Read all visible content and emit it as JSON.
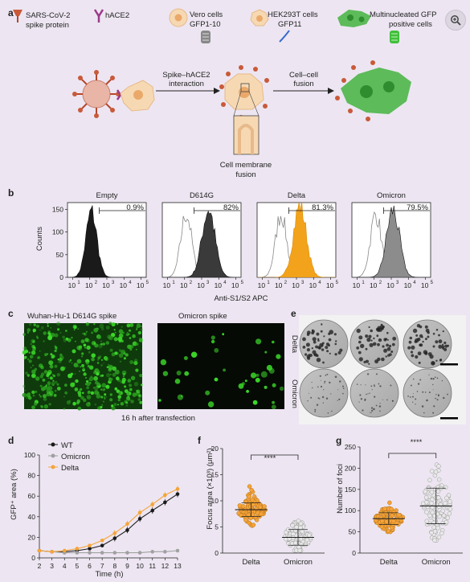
{
  "figure": {
    "a": {
      "letter": "a",
      "legend": [
        "SARS-CoV-2",
        "spike protein",
        "hACE2",
        "Vero cells",
        "GFP1-10",
        "HEK293T cells",
        "GFP11",
        "Multinucleated GFP",
        "positive cells"
      ],
      "arrow1": [
        "Spike–hACE2",
        "interaction"
      ],
      "arrow2": [
        "Cell–cell",
        "fusion"
      ],
      "fusion_label": [
        "Cell membrane",
        "fusion"
      ]
    },
    "b": {
      "letter": "b",
      "ylabel": "Counts",
      "xlabel": "Anti-S1/S2 APC",
      "yticks": [
        "0",
        "50",
        "100",
        "150"
      ],
      "xticks": [
        "10",
        "10",
        "10",
        "10",
        "10"
      ],
      "xtick_exps": [
        "1",
        "2",
        "3",
        "4",
        "5"
      ],
      "panels": [
        {
          "title": "Empty",
          "pct": "0.9%",
          "color": "#1a1a1a"
        },
        {
          "title": "D614G",
          "pct": "82%",
          "color": "#3a3a3a"
        },
        {
          "title": "Delta",
          "pct": "81.3%",
          "color": "#f2a31b"
        },
        {
          "title": "Omicron",
          "pct": "79.5%",
          "color": "#8c8c8c"
        }
      ]
    },
    "c": {
      "letter": "c",
      "left_title": "Wuhan-Hu-1 D614G spike",
      "right_title": "Omicron spike",
      "caption": "16 h after transfection"
    },
    "d": {
      "letter": "d",
      "ylabel": "GFP⁺ area (%)",
      "xlabel": "Time (h)",
      "legend": [
        "WT",
        "Omicron",
        "Delta"
      ]
    },
    "e": {
      "letter": "e",
      "rows": [
        "Delta",
        "Omicron"
      ]
    },
    "f": {
      "letter": "f",
      "ylabel": "Focus area (×10³) (μm²)",
      "sig": "****"
    },
    "g": {
      "letter": "g",
      "ylabel": "Number of foci",
      "sig": "****"
    }
  },
  "colors": {
    "wt": "#1a1a1a",
    "omicron": "#a0a0a0",
    "delta": "#f5a43a",
    "gfp": "#3ddc2a",
    "spike": "#b5472c"
  },
  "icons": {
    "zoom": "zoom-in-icon"
  },
  "chart_data": [
    {
      "type": "line",
      "panel": "d",
      "x": [
        2,
        3,
        4,
        5,
        6,
        7,
        8,
        9,
        10,
        11,
        12,
        13
      ],
      "series": [
        {
          "name": "WT",
          "values": [
            7,
            6,
            6,
            7,
            9,
            12,
            19,
            27,
            38,
            46,
            54,
            62
          ]
        },
        {
          "name": "Omicron",
          "values": [
            7,
            6,
            5,
            5,
            5,
            5,
            5,
            5,
            5,
            6,
            6,
            7
          ]
        },
        {
          "name": "Delta",
          "values": [
            7,
            6,
            7,
            9,
            12,
            17,
            24,
            33,
            44,
            52,
            61,
            67
          ]
        }
      ],
      "xlabel": "Time (h)",
      "ylabel": "GFP⁺ area (%)",
      "xlim": [
        2,
        13
      ],
      "ylim": [
        0,
        100
      ],
      "xticks": [
        2,
        3,
        4,
        5,
        6,
        7,
        8,
        9,
        10,
        11,
        12,
        13
      ],
      "yticks": [
        0,
        20,
        40,
        60,
        80,
        100
      ],
      "legend_position": "top-left"
    },
    {
      "type": "scatter",
      "panel": "f",
      "categories": [
        "Delta",
        "Omicron"
      ],
      "series": [
        {
          "name": "Delta",
          "mean": 8.3,
          "sd": 1.3,
          "min": 4.8,
          "max": 12.8
        },
        {
          "name": "Omicron",
          "mean": 3.0,
          "sd": 1.5,
          "min": 0.5,
          "max": 8.2
        }
      ],
      "ylabel": "Focus area (×10³) (μm²)",
      "ylim": [
        0,
        20
      ],
      "yticks": [
        0,
        5,
        10,
        15,
        20
      ],
      "annotation": "****"
    },
    {
      "type": "scatter",
      "panel": "g",
      "categories": [
        "Delta",
        "Omicron"
      ],
      "series": [
        {
          "name": "Delta",
          "mean": 81,
          "sd": 14,
          "min": 50,
          "max": 158
        },
        {
          "name": "Omicron",
          "mean": 111,
          "sd": 42,
          "min": 30,
          "max": 230
        }
      ],
      "ylabel": "Number of foci",
      "ylim": [
        0,
        250
      ],
      "yticks": [
        0,
        50,
        100,
        150,
        200,
        250
      ],
      "annotation": "****"
    }
  ]
}
